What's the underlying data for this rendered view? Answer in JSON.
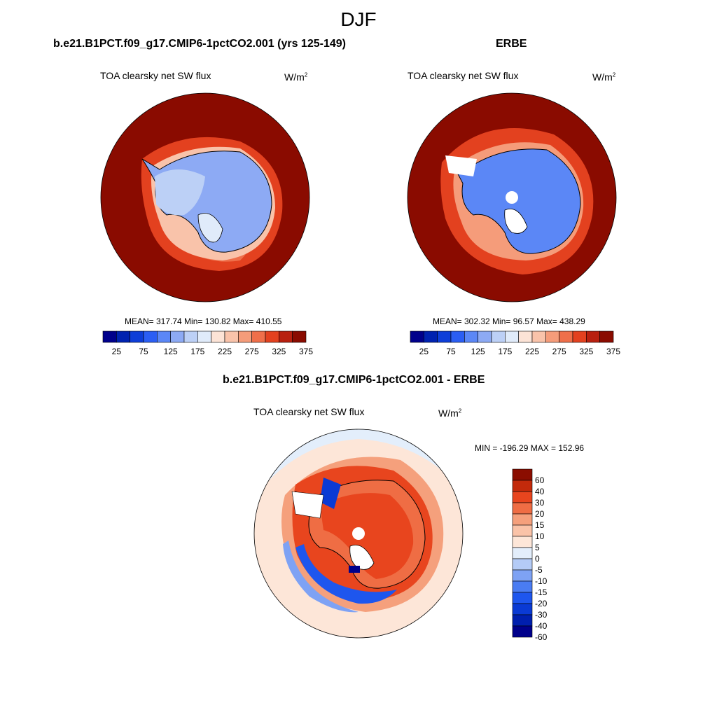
{
  "title": "DJF",
  "colors": {
    "abs_levels": [
      "#00008b",
      "#0022b0",
      "#0e3ed8",
      "#2b5ef3",
      "#5b87f6",
      "#8daaf4",
      "#bcd0f6",
      "#e0ebfa",
      "#fce3d6",
      "#f9c3aa",
      "#f59c7a",
      "#ef6f4a",
      "#e3411f",
      "#b8200f",
      "#8a0b00"
    ],
    "diff_levels": [
      "#00008b",
      "#001fae",
      "#0a3ad4",
      "#1e56ee",
      "#4a7cf3",
      "#7ea2f4",
      "#b4cbf6",
      "#e3eefb",
      "#fde6d8",
      "#fac3a8",
      "#f5a07c",
      "#ef6d44",
      "#e8451e",
      "#c32a0b",
      "#8b0d00"
    ],
    "land_outline": "#000000"
  },
  "panels": {
    "model": {
      "title": "b.e21.B1PCT.f09_g17.CMIP6-1pctCO2.001 (yrs 125-149)",
      "variable": "TOA clearsky net SW flux",
      "units_base": "W/m",
      "units_sup": "2",
      "stats": "MEAN= 317.74  Min= 130.82  Max= 410.55"
    },
    "obs": {
      "title": "ERBE",
      "variable": "TOA clearsky net SW flux",
      "units_base": "W/m",
      "units_sup": "2",
      "stats": "MEAN= 302.32  Min=  96.57  Max= 438.29"
    },
    "diff": {
      "title": "b.e21.B1PCT.f09_g17.CMIP6-1pctCO2.001 - ERBE",
      "variable": "TOA clearsky net SW flux",
      "units_base": "W/m",
      "units_sup": "2",
      "stats": "MIN = -196.29 MAX = 152.96"
    }
  },
  "chart_data": [
    {
      "type": "heatmap",
      "projection": "south-polar-stereographic",
      "title": "b.e21.B1PCT.f09_g17.CMIP6-1pctCO2.001 (yrs 125-149)",
      "variable": "TOA clearsky net SW flux",
      "units": "W/m2",
      "mean": 317.74,
      "min": 130.82,
      "max": 410.55,
      "contour_levels": [
        25,
        50,
        75,
        100,
        125,
        150,
        175,
        200,
        225,
        250,
        275,
        300,
        325,
        350,
        375
      ],
      "colorbar_tick_labels": [
        "25",
        "75",
        "125",
        "175",
        "225",
        "275",
        "325",
        "375"
      ],
      "colorbar_orientation": "horizontal"
    },
    {
      "type": "heatmap",
      "projection": "south-polar-stereographic",
      "title": "ERBE",
      "variable": "TOA clearsky net SW flux",
      "units": "W/m2",
      "mean": 302.32,
      "min": 96.57,
      "max": 438.29,
      "contour_levels": [
        25,
        50,
        75,
        100,
        125,
        150,
        175,
        200,
        225,
        250,
        275,
        300,
        325,
        350,
        375
      ],
      "colorbar_tick_labels": [
        "25",
        "75",
        "125",
        "175",
        "225",
        "275",
        "325",
        "375"
      ],
      "colorbar_orientation": "horizontal"
    },
    {
      "type": "heatmap",
      "projection": "south-polar-stereographic",
      "title": "b.e21.B1PCT.f09_g17.CMIP6-1pctCO2.001 - ERBE",
      "variable": "TOA clearsky net SW flux",
      "units": "W/m2",
      "min": -196.29,
      "max": 152.96,
      "contour_levels": [
        -60,
        -40,
        -30,
        -20,
        -15,
        -10,
        -5,
        0,
        5,
        10,
        15,
        20,
        30,
        40,
        60
      ],
      "colorbar_tick_labels": [
        "60",
        "40",
        "30",
        "20",
        "15",
        "10",
        "5",
        "0",
        "-5",
        "-10",
        "-15",
        "-20",
        "-30",
        "-40",
        "-60"
      ],
      "colorbar_orientation": "vertical"
    }
  ]
}
